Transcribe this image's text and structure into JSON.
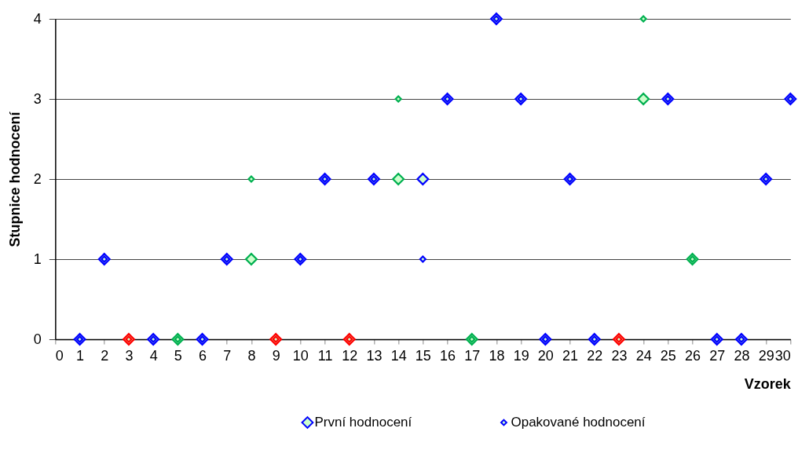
{
  "chart_data": {
    "type": "scatter",
    "xlabel": "Vzorek",
    "ylabel": "Stupnice hodnocení",
    "x": [
      1,
      2,
      3,
      4,
      5,
      6,
      7,
      8,
      9,
      10,
      11,
      12,
      13,
      14,
      15,
      16,
      17,
      18,
      19,
      20,
      21,
      22,
      23,
      24,
      25,
      26,
      27,
      28,
      29,
      30
    ],
    "xlim": [
      0,
      30
    ],
    "xticks": [
      0,
      1,
      2,
      3,
      4,
      5,
      6,
      7,
      8,
      9,
      10,
      11,
      12,
      13,
      14,
      15,
      16,
      17,
      18,
      19,
      20,
      21,
      22,
      23,
      24,
      25,
      26,
      27,
      28,
      29,
      30
    ],
    "ylim": [
      0,
      4
    ],
    "yticks": [
      0,
      1,
      2,
      3,
      4
    ],
    "grid": "y",
    "legend": "bottom",
    "marker": "diamond",
    "series": [
      {
        "name": "První hodnocení",
        "color": "#0000ff",
        "values": [
          0,
          1,
          0,
          0,
          0,
          0,
          1,
          1,
          0,
          1,
          2,
          0,
          2,
          2,
          2,
          3,
          0,
          4,
          3,
          0,
          2,
          0,
          0,
          3,
          3,
          1,
          0,
          0,
          2,
          3
        ],
        "colors": [
          "#0000ff",
          "#0000ff",
          "#ff0000",
          "#0000ff",
          "#00b050",
          "#0000ff",
          "#0000ff",
          "#00b050",
          "#ff0000",
          "#0000ff",
          "#0000ff",
          "#ff0000",
          "#0000ff",
          "#00b050",
          "#0000ff",
          "#0000ff",
          "#00b050",
          "#0000ff",
          "#0000ff",
          "#0000ff",
          "#0000ff",
          "#0000ff",
          "#ff0000",
          "#00b050",
          "#0000ff",
          "#00b050",
          "#0000ff",
          "#0000ff",
          "#0000ff",
          "#0000ff"
        ]
      },
      {
        "name": "Opakované hodnocení",
        "color": "#0000ff",
        "values": [
          0,
          1,
          0,
          0,
          0,
          0,
          1,
          2,
          0,
          1,
          2,
          0,
          2,
          3,
          1,
          3,
          0,
          4,
          3,
          0,
          2,
          0,
          0,
          4,
          3,
          1,
          0,
          0,
          2,
          3
        ],
        "colors": [
          "#0000ff",
          "#0000ff",
          "#ff0000",
          "#0000ff",
          "#00b050",
          "#0000ff",
          "#0000ff",
          "#00b050",
          "#ff0000",
          "#0000ff",
          "#0000ff",
          "#ff0000",
          "#0000ff",
          "#00b050",
          "#0000ff",
          "#0000ff",
          "#00b050",
          "#0000ff",
          "#0000ff",
          "#0000ff",
          "#0000ff",
          "#0000ff",
          "#ff0000",
          "#00b050",
          "#0000ff",
          "#00b050",
          "#0000ff",
          "#0000ff",
          "#0000ff",
          "#0000ff"
        ]
      }
    ]
  }
}
